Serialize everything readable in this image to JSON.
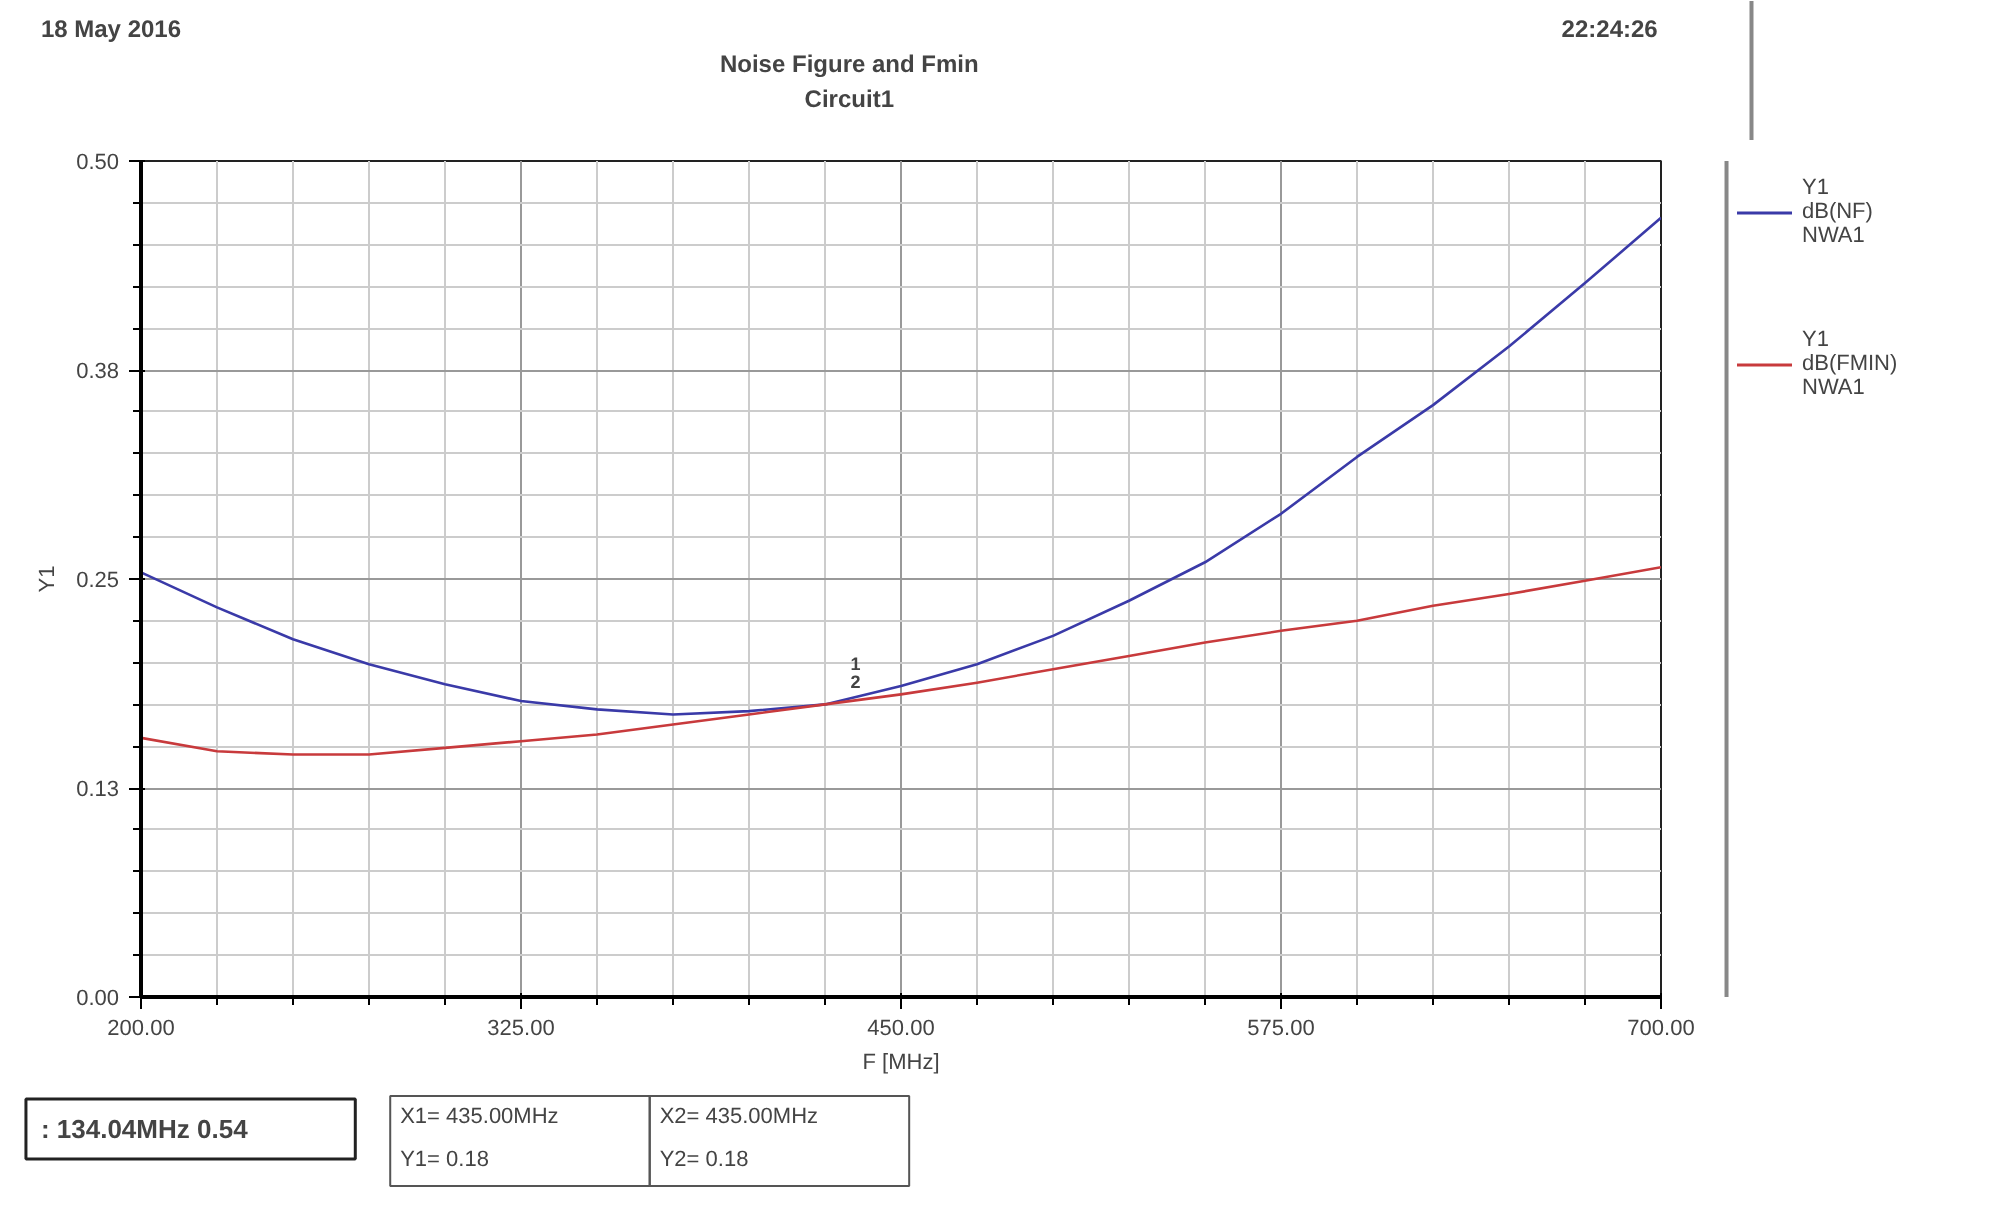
{
  "chart_data": {
    "type": "line",
    "title": "Noise Figure and Fmin",
    "subtitle": "Circuit1",
    "xlabel": "F [MHz]",
    "ylabel": "Y1",
    "x": [
      200,
      225,
      250,
      275,
      300,
      325,
      350,
      375,
      400,
      425,
      450,
      475,
      500,
      525,
      550,
      575,
      600,
      625,
      650,
      675,
      700
    ],
    "series": [
      {
        "name": "Y1\ndB(NF)\nNWA1",
        "color": "#3a3aa8",
        "values": [
          0.254,
          0.233,
          0.214,
          0.199,
          0.187,
          0.177,
          0.172,
          0.169,
          0.171,
          0.175,
          0.186,
          0.199,
          0.216,
          0.237,
          0.26,
          0.289,
          0.323,
          0.354,
          0.389,
          0.427,
          0.466
        ]
      },
      {
        "name": "Y1\ndB(FMIN)\nNWA1",
        "color": "#c83a3c",
        "values": [
          0.155,
          0.147,
          0.145,
          0.145,
          0.149,
          0.153,
          0.157,
          0.163,
          0.169,
          0.175,
          0.181,
          0.188,
          0.196,
          0.204,
          0.212,
          0.219,
          0.225,
          0.234,
          0.241,
          0.249,
          0.257
        ]
      }
    ],
    "xlim": [
      200,
      700
    ],
    "ylim": [
      0,
      0.5
    ],
    "xticks": [
      {
        "value": 200,
        "label": "200.00"
      },
      {
        "value": 325,
        "label": "325.00"
      },
      {
        "value": 450,
        "label": "450.00"
      },
      {
        "value": 575,
        "label": "575.00"
      },
      {
        "value": 700,
        "label": "700.00"
      }
    ],
    "yticks": [
      {
        "value": 0,
        "label": "0.00"
      },
      {
        "value": 0.125,
        "label": "0.13"
      },
      {
        "value": 0.25,
        "label": "0.25"
      },
      {
        "value": 0.375,
        "label": "0.38"
      },
      {
        "value": 0.5,
        "label": "0.50"
      }
    ],
    "grid": true,
    "legend": "right",
    "line_style": "solid",
    "annotations": [
      "18 May 2016",
      "22:24:26",
      ": 134.04MHz 0.54",
      "X1= 435.00MHz",
      "Y1= 0.18",
      "X2= 435.00MHz",
      "Y2= 0.18",
      {
        "text": "1",
        "x": 435,
        "y": 0.18
      },
      {
        "text": "2",
        "x": 435,
        "y": 0.18
      }
    ]
  }
}
